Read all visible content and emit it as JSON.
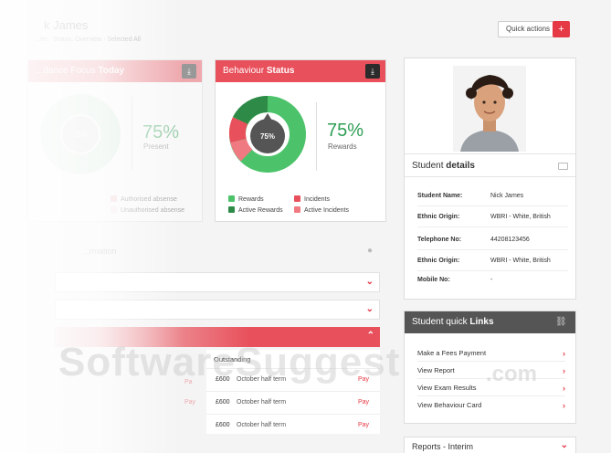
{
  "header": {
    "student_name": "k James",
    "subtitle": "...ter · Status: Overview · Selected All",
    "quick_actions_label": "Quick actions",
    "plus_label": "+"
  },
  "attendance_card": {
    "title_prefix": "...dance Focus",
    "title_bold": "Today",
    "donut_label": "75%",
    "percent": "75%",
    "percent_label": "Present",
    "legend": [
      "Authorised absense",
      "Unauthorised absense"
    ]
  },
  "behaviour_card": {
    "title_prefix": "Behaviour",
    "title_bold": "Status",
    "donut_label": "75%",
    "percent": "75%",
    "percent_label": "Rewards",
    "legend": [
      {
        "label": "Rewards",
        "color": "#4cc36a"
      },
      {
        "label": "Incidents",
        "color": "#e8505b"
      },
      {
        "label": "Active Rewards",
        "color": "#2e8b47"
      },
      {
        "label": "Active Incidents",
        "color": "#f07a82"
      }
    ]
  },
  "student_details": {
    "heading_prefix": "Student",
    "heading_bold": "details",
    "rows": [
      {
        "key": "Student Name:",
        "value": "Nick James"
      },
      {
        "key": "Ethnic Origin:",
        "value": "WBRI - White, British"
      },
      {
        "key": "Telephone No:",
        "value": "44208123456"
      },
      {
        "key": "Ethnic Origin:",
        "value": "WBRI - White, British"
      },
      {
        "key": "Mobile No:",
        "value": "-"
      }
    ]
  },
  "quick_links": {
    "heading_prefix": "Student quick",
    "heading_bold": "Links",
    "items": [
      "Make a Fees Payment",
      "View Report",
      "View Exam Results",
      "View Behaviour Card"
    ]
  },
  "reports": {
    "label": "Reports - Interim"
  },
  "information": {
    "title": "...rmation"
  },
  "fees": {
    "header": "Outstanding",
    "rows": [
      {
        "amount": "£600",
        "desc": "October half term",
        "action": "Pay"
      },
      {
        "amount": "£600",
        "desc": "October half term",
        "action": "Pay"
      },
      {
        "amount": "£600",
        "desc": "October half term",
        "action": "Pay"
      }
    ],
    "ghost_left": [
      "Pa",
      "Pay"
    ]
  },
  "watermark": {
    "text": "SoftwareSuggest",
    "suffix": ".com"
  }
}
